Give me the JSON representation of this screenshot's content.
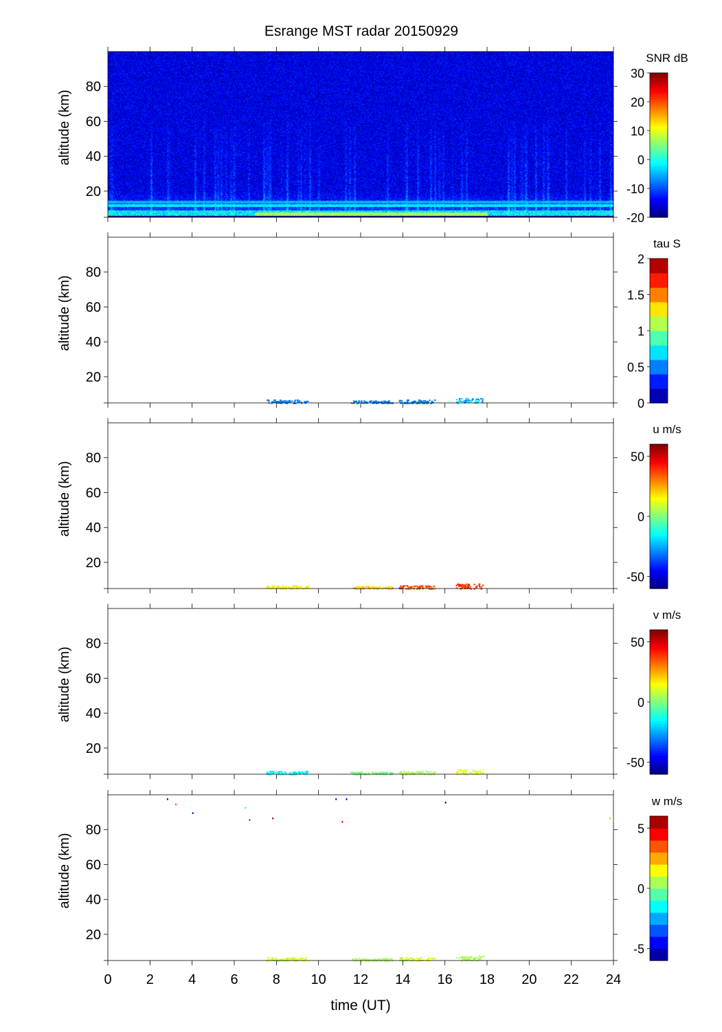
{
  "figure": {
    "title": "Esrange MST radar 20150929",
    "xlabel": "time (UT)",
    "xticks": [
      "0",
      "2",
      "4",
      "6",
      "8",
      "10",
      "12",
      "14",
      "16",
      "18",
      "20",
      "22",
      "24"
    ]
  },
  "chart_data": [
    {
      "type": "heatmap",
      "panel": 1,
      "title": "Esrange MST radar 20150929",
      "ylabel": "altitude (km)",
      "yticks": [
        "20",
        "40",
        "60",
        "80"
      ],
      "xlim": [
        0,
        24
      ],
      "ylim": [
        5,
        100
      ],
      "colorbar": {
        "label": "SNR dB",
        "ticks": [
          "-20",
          "-10",
          "0",
          "10",
          "20",
          "30"
        ],
        "range": [
          -20,
          30
        ],
        "levels": "continuous",
        "colormap": "jet"
      },
      "description_values": {
        "background_snr_db": -15,
        "near_ground_layer_km": [
          5,
          15
        ],
        "near_ground_max_snr_db": 10
      },
      "features": [
        {
          "kind": "band",
          "alt_km": 14,
          "snr_db": -5
        },
        {
          "kind": "band",
          "alt_km": 12,
          "snr_db": -2
        },
        {
          "kind": "enhanced",
          "time_range": [
            7,
            18
          ],
          "alt_km": [
            5,
            8
          ],
          "snr_db": 8
        }
      ]
    },
    {
      "type": "scatter",
      "panel": 2,
      "ylabel": "altitude (km)",
      "yticks": [
        "20",
        "40",
        "60",
        "80"
      ],
      "xlim": [
        0,
        24
      ],
      "ylim": [
        5,
        100
      ],
      "colorbar": {
        "label": "tau S",
        "ticks": [
          "0",
          "0.5",
          "1",
          "1.5",
          "2"
        ],
        "range": [
          0,
          2
        ],
        "levels": 10,
        "colormap": "jet"
      },
      "clusters": [
        {
          "t": [
            7.5,
            9.5
          ],
          "alt": [
            5,
            7
          ],
          "value": 0.5
        },
        {
          "t": [
            11.5,
            13.5
          ],
          "alt": [
            5,
            6.5
          ],
          "value": 0.5
        },
        {
          "t": [
            13.8,
            15.5
          ],
          "alt": [
            5,
            7
          ],
          "value": 0.5
        },
        {
          "t": [
            16.5,
            17.8
          ],
          "alt": [
            5,
            8
          ],
          "value": 0.6
        }
      ]
    },
    {
      "type": "scatter",
      "panel": 3,
      "ylabel": "altitude (km)",
      "yticks": [
        "20",
        "40",
        "60",
        "80"
      ],
      "xlim": [
        0,
        24
      ],
      "ylim": [
        5,
        100
      ],
      "colorbar": {
        "label": "u m/s",
        "ticks": [
          "-50",
          "0",
          "50"
        ],
        "range": [
          -60,
          60
        ],
        "levels": "continuous",
        "colormap": "jet"
      },
      "clusters": [
        {
          "t": [
            7.5,
            9.5
          ],
          "alt": [
            5,
            7
          ],
          "value": 15
        },
        {
          "t": [
            11.5,
            13.5
          ],
          "alt": [
            5,
            6.5
          ],
          "value": 20
        },
        {
          "t": [
            13.8,
            15.5
          ],
          "alt": [
            5,
            7
          ],
          "value": 35
        },
        {
          "t": [
            16.5,
            17.8
          ],
          "alt": [
            5,
            8
          ],
          "value": 40
        }
      ]
    },
    {
      "type": "scatter",
      "panel": 4,
      "ylabel": "altitude (km)",
      "yticks": [
        "20",
        "40",
        "60",
        "80"
      ],
      "xlim": [
        0,
        24
      ],
      "ylim": [
        5,
        100
      ],
      "colorbar": {
        "label": "v m/s",
        "ticks": [
          "-50",
          "0",
          "50"
        ],
        "range": [
          -60,
          60
        ],
        "levels": "continuous",
        "colormap": "jet"
      },
      "clusters": [
        {
          "t": [
            7.5,
            9.5
          ],
          "alt": [
            5,
            7
          ],
          "value": -15
        },
        {
          "t": [
            11.5,
            13.5
          ],
          "alt": [
            5,
            6.5
          ],
          "value": 0
        },
        {
          "t": [
            13.8,
            15.5
          ],
          "alt": [
            5,
            7
          ],
          "value": 5
        },
        {
          "t": [
            16.5,
            17.8
          ],
          "alt": [
            5,
            8
          ],
          "value": 12
        }
      ]
    },
    {
      "type": "scatter",
      "panel": 5,
      "ylabel": "altitude (km)",
      "yticks": [
        "20",
        "40",
        "60",
        "80"
      ],
      "xlim": [
        0,
        24
      ],
      "ylim": [
        5,
        100
      ],
      "colorbar": {
        "label": "w m/s",
        "ticks": [
          "-5",
          "0",
          "5"
        ],
        "range": [
          -6,
          6
        ],
        "levels": 12,
        "colormap": "jet"
      },
      "clusters": [
        {
          "t": [
            7.5,
            9.5
          ],
          "alt": [
            5,
            7
          ],
          "value": 1
        },
        {
          "t": [
            11.5,
            13.5
          ],
          "alt": [
            5,
            6.5
          ],
          "value": 0.5
        },
        {
          "t": [
            13.8,
            15.5
          ],
          "alt": [
            5,
            7
          ],
          "value": 1
        },
        {
          "t": [
            16.5,
            17.8
          ],
          "alt": [
            5,
            8
          ],
          "value": 0.5
        }
      ],
      "isolated_points": [
        {
          "t": 2.8,
          "alt": 98,
          "value": -5
        },
        {
          "t": 3.2,
          "alt": 95,
          "value": 3
        },
        {
          "t": 4.0,
          "alt": 90,
          "value": -6
        },
        {
          "t": 6.5,
          "alt": 93,
          "value": -2
        },
        {
          "t": 6.7,
          "alt": 86,
          "value": -4
        },
        {
          "t": 7.8,
          "alt": 87,
          "value": 6
        },
        {
          "t": 10.8,
          "alt": 98,
          "value": -5
        },
        {
          "t": 11.1,
          "alt": 85,
          "value": 4
        },
        {
          "t": 11.3,
          "alt": 98,
          "value": -6
        },
        {
          "t": 16.0,
          "alt": 96,
          "value": -6
        },
        {
          "t": 23.8,
          "alt": 87,
          "value": 2
        }
      ]
    }
  ]
}
